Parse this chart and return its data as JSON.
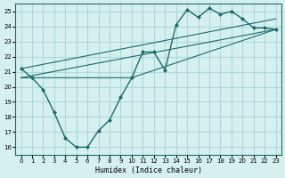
{
  "xlabel": "Humidex (Indice chaleur)",
  "ylabel": "",
  "bg_color": "#d6f0f0",
  "line_color": "#1a6b6b",
  "grid_color": "#b0d8d8",
  "xlim": [
    -0.5,
    23.5
  ],
  "ylim": [
    15.5,
    25.5
  ],
  "xticks": [
    0,
    1,
    2,
    3,
    4,
    5,
    6,
    7,
    8,
    9,
    10,
    11,
    12,
    13,
    14,
    15,
    16,
    17,
    18,
    19,
    20,
    21,
    22,
    23
  ],
  "yticks": [
    16,
    17,
    18,
    19,
    20,
    21,
    22,
    23,
    24,
    25
  ],
  "curve1_x": [
    0,
    1,
    2,
    3,
    4,
    5,
    6,
    7,
    8,
    9,
    10,
    11,
    12,
    13,
    14,
    15,
    16,
    17,
    18,
    19,
    20,
    21,
    22,
    23
  ],
  "curve1_y": [
    21.2,
    20.6,
    19.8,
    18.3,
    16.6,
    16.0,
    16.0,
    17.1,
    17.8,
    19.3,
    20.6,
    22.3,
    22.3,
    21.1,
    24.1,
    25.1,
    24.6,
    25.2,
    24.8,
    25.0,
    24.5,
    23.9,
    23.9,
    23.8
  ],
  "curve2_x": [
    0,
    23
  ],
  "curve2_y": [
    20.6,
    23.8
  ],
  "curve3_x": [
    0,
    23
  ],
  "curve3_y": [
    21.2,
    24.5
  ],
  "curve4_x": [
    0,
    10,
    23
  ],
  "curve4_y": [
    20.6,
    20.6,
    23.8
  ]
}
